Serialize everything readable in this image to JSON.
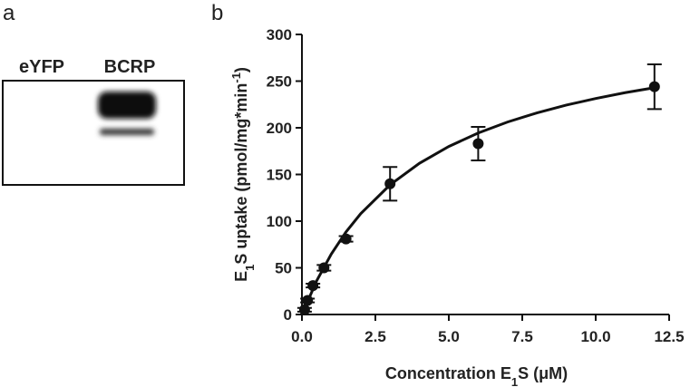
{
  "panel_a": {
    "label": "a",
    "lanes": [
      "eYFP",
      "BCRP"
    ]
  },
  "chart_data": {
    "type": "scatter",
    "label": "b",
    "xlabel": [
      "Concentration E",
      "1",
      "S (μM)"
    ],
    "ylabel": [
      "E",
      "1",
      "S uptake (pmol/mg*min",
      "-1",
      ")"
    ],
    "points": {
      "color": "#111111",
      "x": [
        0.09,
        0.19,
        0.375,
        0.75,
        1.5,
        3,
        6,
        12
      ],
      "values": [
        5,
        15,
        31,
        50,
        81,
        140,
        183,
        244
      ],
      "errors": [
        2,
        2,
        2,
        3,
        3,
        18,
        18,
        24
      ]
    },
    "fit_curve": {
      "color": "#111111",
      "x": [
        0,
        0.5,
        1,
        1.5,
        2,
        3,
        4,
        5,
        6,
        7,
        8,
        9,
        10,
        11,
        12
      ],
      "values": [
        0,
        36,
        64.8,
        88.4,
        108,
        138.9,
        162,
        180,
        194.4,
        206.2,
        216,
        224.3,
        231.4,
        237.6,
        243
      ]
    },
    "xlim": [
      0,
      12.5
    ],
    "xticks": [
      {
        "value": 0,
        "label": "0.0"
      },
      2.5,
      {
        "value": 5,
        "label": "5.0"
      },
      7.5,
      {
        "value": 10,
        "label": "10.0"
      },
      12.5
    ],
    "ylim": [
      0,
      300
    ],
    "yticks": [
      0,
      50,
      100,
      150,
      200,
      250,
      300
    ]
  }
}
